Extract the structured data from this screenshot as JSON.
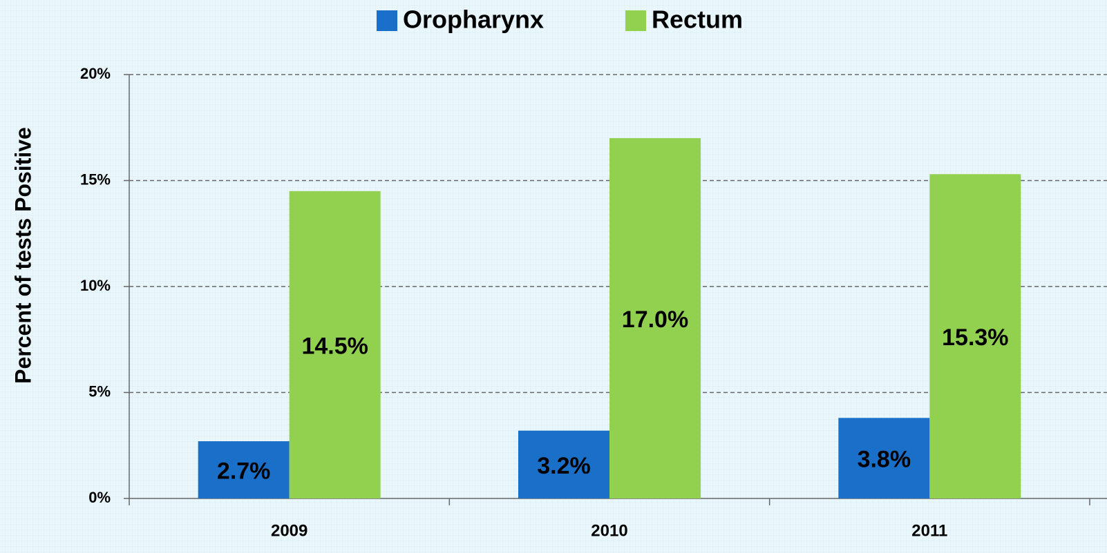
{
  "chart_data": {
    "type": "bar",
    "y_axis_label": "Percent of tests Positive",
    "categories": [
      "2009",
      "2010",
      "2011"
    ],
    "series": [
      {
        "name": "Oropharynx",
        "color": "#1a70c8",
        "values": [
          2.7,
          3.2,
          3.8
        ],
        "value_labels": [
          "2.7%",
          "3.2%",
          "3.8%"
        ]
      },
      {
        "name": "Rectum",
        "color": "#92d050",
        "values": [
          14.5,
          17.0,
          15.3
        ],
        "value_labels": [
          "14.5%",
          "17.0%",
          "15.3%"
        ]
      }
    ],
    "ylim": [
      0,
      20
    ],
    "yticks": [
      {
        "value": 0,
        "label": "0%"
      },
      {
        "value": 5,
        "label": "5%"
      },
      {
        "value": 10,
        "label": "10%"
      },
      {
        "value": 15,
        "label": "15%"
      },
      {
        "value": 20,
        "label": "20%"
      }
    ],
    "grid": true,
    "legend": "top"
  }
}
